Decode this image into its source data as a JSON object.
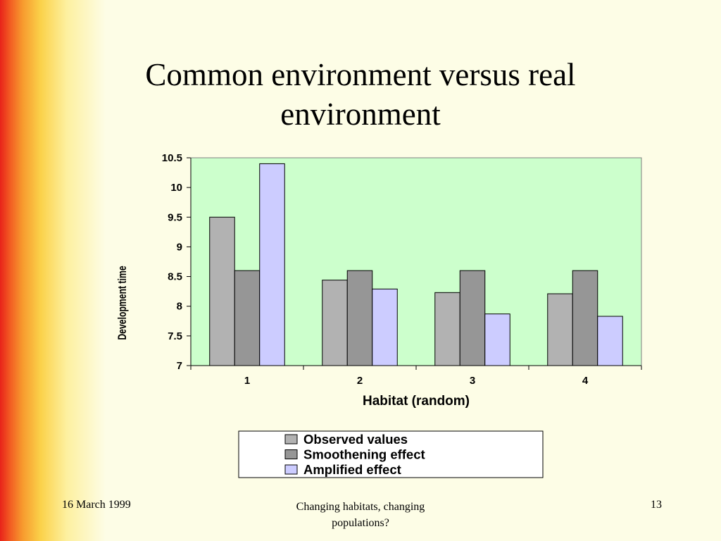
{
  "slide": {
    "title_line1": "Common environment versus real",
    "title_line2": "environment",
    "footer_date": "16 March 1999",
    "footer_center_line1": "Changing habitats, changing",
    "footer_center_line2": "populations?",
    "page_number": "13"
  },
  "chart_data": {
    "type": "bar",
    "categories": [
      "1",
      "2",
      "3",
      "4"
    ],
    "series": [
      {
        "name": "Observed values",
        "values": [
          9.5,
          8.44,
          8.23,
          8.21
        ],
        "color": "#b2b2b2"
      },
      {
        "name": "Smoothening effect",
        "values": [
          8.6,
          8.6,
          8.6,
          8.6
        ],
        "color": "#969696"
      },
      {
        "name": "Amplified effect",
        "values": [
          10.4,
          8.29,
          7.87,
          7.83
        ],
        "color": "#ccccff"
      }
    ],
    "xlabel": "Habitat (random)",
    "ylabel": "Development time",
    "ylim": [
      7,
      10.5
    ],
    "yticks": [
      "7",
      "7.5",
      "8",
      "8.5",
      "9",
      "9.5",
      "10",
      "10.5"
    ],
    "plot_background": "#ccffcc",
    "grid": false,
    "legend_position": "bottom"
  }
}
